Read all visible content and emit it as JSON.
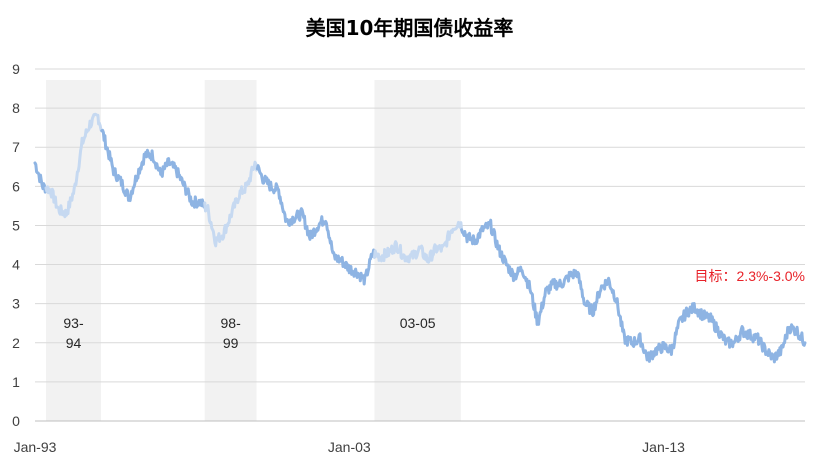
{
  "chart_data": {
    "type": "line",
    "title": "美国10年期国债收益率",
    "xlabel": "",
    "ylabel": "",
    "ylim": [
      0,
      9
    ],
    "yticks": [
      "0",
      "1",
      "2",
      "3",
      "4",
      "5",
      "6",
      "7",
      "8",
      "9"
    ],
    "x_tick_labels": [
      "Jan-93",
      "Jan-03",
      "Jan-13"
    ],
    "x_tick_years": [
      1993.0,
      2003.0,
      2013.0
    ],
    "x_range_years": [
      1993.0,
      2017.5
    ],
    "grid": "horizontal",
    "legend": "none",
    "series": [
      {
        "color": "#8eb4e3",
        "highlight_color": "#c6d9f1",
        "x": [
          1993.0,
          1993.25,
          1993.5,
          1993.75,
          1994.0,
          1994.25,
          1994.5,
          1994.75,
          1995.0,
          1995.25,
          1995.5,
          1995.75,
          1996.0,
          1996.25,
          1996.5,
          1996.75,
          1997.0,
          1997.25,
          1997.5,
          1997.75,
          1998.0,
          1998.25,
          1998.5,
          1998.75,
          1999.0,
          1999.25,
          1999.5,
          1999.75,
          2000.0,
          2000.25,
          2000.5,
          2000.75,
          2001.0,
          2001.25,
          2001.5,
          2001.75,
          2002.0,
          2002.25,
          2002.5,
          2002.75,
          2003.0,
          2003.25,
          2003.5,
          2003.75,
          2004.0,
          2004.25,
          2004.5,
          2004.75,
          2005.0,
          2005.25,
          2005.5,
          2005.75,
          2006.0,
          2006.25,
          2006.5,
          2006.75,
          2007.0,
          2007.25,
          2007.5,
          2007.75,
          2008.0,
          2008.25,
          2008.5,
          2008.75,
          2009.0,
          2009.25,
          2009.5,
          2009.75,
          2010.0,
          2010.25,
          2010.5,
          2010.75,
          2011.0,
          2011.25,
          2011.5,
          2011.75,
          2012.0,
          2012.25,
          2012.5,
          2012.75,
          2013.0,
          2013.25,
          2013.5,
          2013.75,
          2014.0,
          2014.25,
          2014.5,
          2014.75,
          2015.0,
          2015.25,
          2015.5,
          2015.75,
          2016.0,
          2016.25,
          2016.5,
          2016.75,
          2017.0,
          2017.25,
          2017.5
        ],
        "values": [
          6.6,
          6.0,
          5.9,
          5.4,
          5.3,
          5.9,
          7.1,
          7.6,
          7.8,
          7.1,
          6.4,
          6.1,
          5.7,
          6.3,
          6.8,
          6.8,
          6.3,
          6.6,
          6.4,
          6.0,
          5.6,
          5.6,
          5.4,
          4.6,
          4.8,
          5.3,
          5.8,
          6.0,
          6.6,
          6.2,
          6.0,
          5.9,
          5.1,
          5.2,
          5.3,
          4.7,
          5.0,
          5.2,
          4.2,
          4.1,
          3.9,
          3.8,
          3.6,
          4.3,
          4.2,
          4.3,
          4.5,
          4.2,
          4.2,
          4.4,
          4.1,
          4.4,
          4.4,
          4.9,
          5.1,
          4.7,
          4.6,
          4.9,
          5.0,
          4.4,
          4.0,
          3.7,
          3.9,
          3.4,
          2.5,
          3.3,
          3.5,
          3.5,
          3.7,
          3.8,
          3.0,
          2.8,
          3.4,
          3.6,
          3.1,
          2.1,
          2.0,
          2.1,
          1.6,
          1.8,
          1.9,
          1.8,
          2.5,
          2.8,
          2.9,
          2.7,
          2.6,
          2.3,
          2.0,
          2.0,
          2.3,
          2.2,
          2.1,
          1.8,
          1.6,
          1.8,
          2.4,
          2.3,
          2.0
        ]
      }
    ],
    "highlight_periods": [
      {
        "label": "93-94",
        "label_lines": [
          "93-",
          "94"
        ],
        "start": 1993.35,
        "end": 1995.1
      },
      {
        "label": "98-99",
        "label_lines": [
          "98-",
          "99"
        ],
        "start": 1998.4,
        "end": 2000.05
      },
      {
        "label": "03-05",
        "label_lines": [
          "03-05"
        ],
        "start": 2003.8,
        "end": 2006.55
      }
    ],
    "annotations": [
      {
        "text": "目标：2.3%-3.0%",
        "color": "#e8232a"
      }
    ]
  }
}
